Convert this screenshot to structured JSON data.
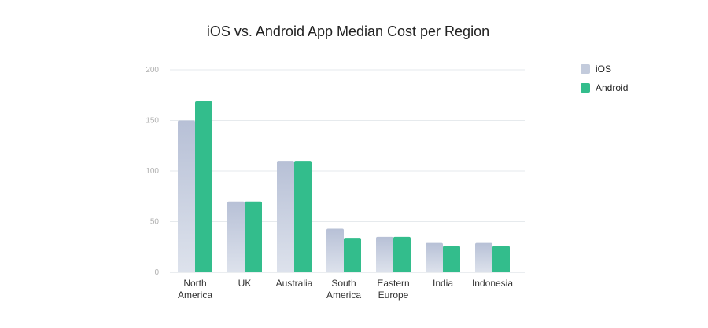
{
  "chart_data": {
    "type": "bar",
    "title": "iOS vs. Android App Median Cost per Region",
    "categories": [
      [
        "North",
        "America"
      ],
      [
        "UK"
      ],
      [
        "Australia"
      ],
      [
        "South",
        "America"
      ],
      [
        "Eastern",
        "Europe"
      ],
      [
        "India"
      ],
      [
        "Indonesia"
      ]
    ],
    "series": [
      {
        "name": "iOS",
        "color": "#c3cbdc",
        "values": [
          150,
          70,
          110,
          43,
          35,
          29,
          29
        ]
      },
      {
        "name": "Android",
        "color": "#33bd8c",
        "values": [
          169,
          70,
          110,
          34,
          35,
          26,
          26
        ]
      }
    ],
    "ylim": [
      0,
      200
    ],
    "yticks": [
      0,
      50,
      100,
      150,
      200
    ],
    "grid": true,
    "legend_position": "top-right"
  }
}
